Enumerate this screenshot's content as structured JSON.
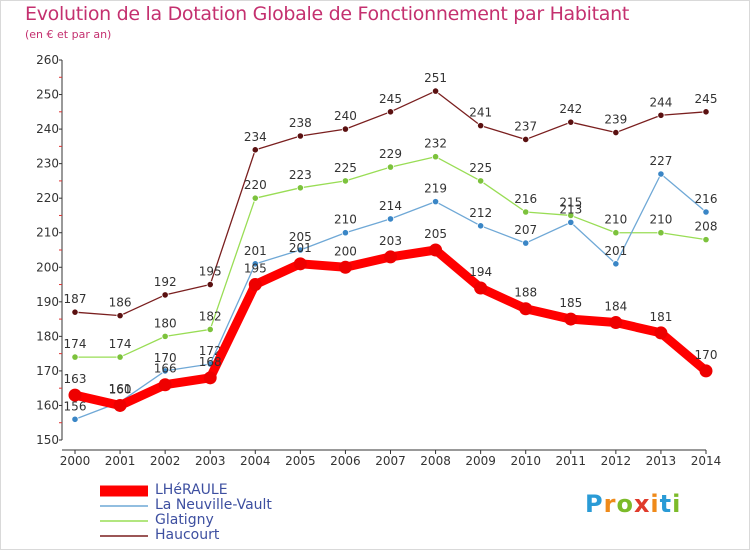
{
  "header": {
    "title": "Evolution de la Dotation Globale de Fonctionnement par Habitant",
    "subtitle": "(en € et par an)"
  },
  "legend": {
    "items": [
      {
        "label": "LHéRAULE",
        "color": "#ff0000"
      },
      {
        "label": "La Neuville-Vault",
        "color": "#6fa8d6"
      },
      {
        "label": "Glatigny",
        "color": "#99dd55"
      },
      {
        "label": "Haucourt",
        "color": "#7a1f1f"
      }
    ]
  },
  "logo": {
    "letters": [
      "P",
      "r",
      "o",
      "x",
      "i",
      "t",
      "i"
    ],
    "colors": [
      "#2a9bd6",
      "#ef8a1a",
      "#7cbb2a",
      "#e03a2b",
      "#ef8a1a",
      "#2a9bd6",
      "#7cbb2a"
    ]
  },
  "chart_data": {
    "type": "line",
    "title": "Evolution de la Dotation Globale de Fonctionnement par Habitant",
    "subtitle": "(en € et par an)",
    "x": [
      "2000",
      "2001",
      "2002",
      "2003",
      "2004",
      "2005",
      "2006",
      "2007",
      "2008",
      "2009",
      "2010",
      "2011",
      "2012",
      "2013",
      "2014"
    ],
    "ylim": [
      150,
      260
    ],
    "yticks": [
      150,
      160,
      170,
      180,
      190,
      200,
      210,
      220,
      230,
      240,
      250,
      260
    ],
    "grid": false,
    "legend_position": "bottom-left",
    "series": [
      {
        "name": "Haucourt",
        "color": "#7a1f1f",
        "marker": "#5a1010",
        "values": [
          187,
          186,
          192,
          195,
          234,
          238,
          240,
          245,
          251,
          241,
          237,
          242,
          239,
          244,
          245
        ]
      },
      {
        "name": "Glatigny",
        "color": "#99dd55",
        "marker": "#7cc23c",
        "values": [
          174,
          174,
          180,
          182,
          220,
          223,
          225,
          229,
          232,
          225,
          216,
          215,
          210,
          210,
          208
        ]
      },
      {
        "name": "La Neuville-Vault",
        "color": "#6fa8d6",
        "marker": "#3a86c6",
        "values": [
          156,
          161,
          170,
          172,
          201,
          205,
          210,
          214,
          219,
          212,
          207,
          213,
          201,
          227,
          216
        ]
      },
      {
        "name": "LHéRAULE",
        "color": "#ff0000",
        "marker": "#ee0000",
        "values": [
          163,
          160,
          166,
          168,
          195,
          201,
          200,
          203,
          205,
          194,
          188,
          185,
          184,
          181,
          170
        ]
      }
    ]
  }
}
